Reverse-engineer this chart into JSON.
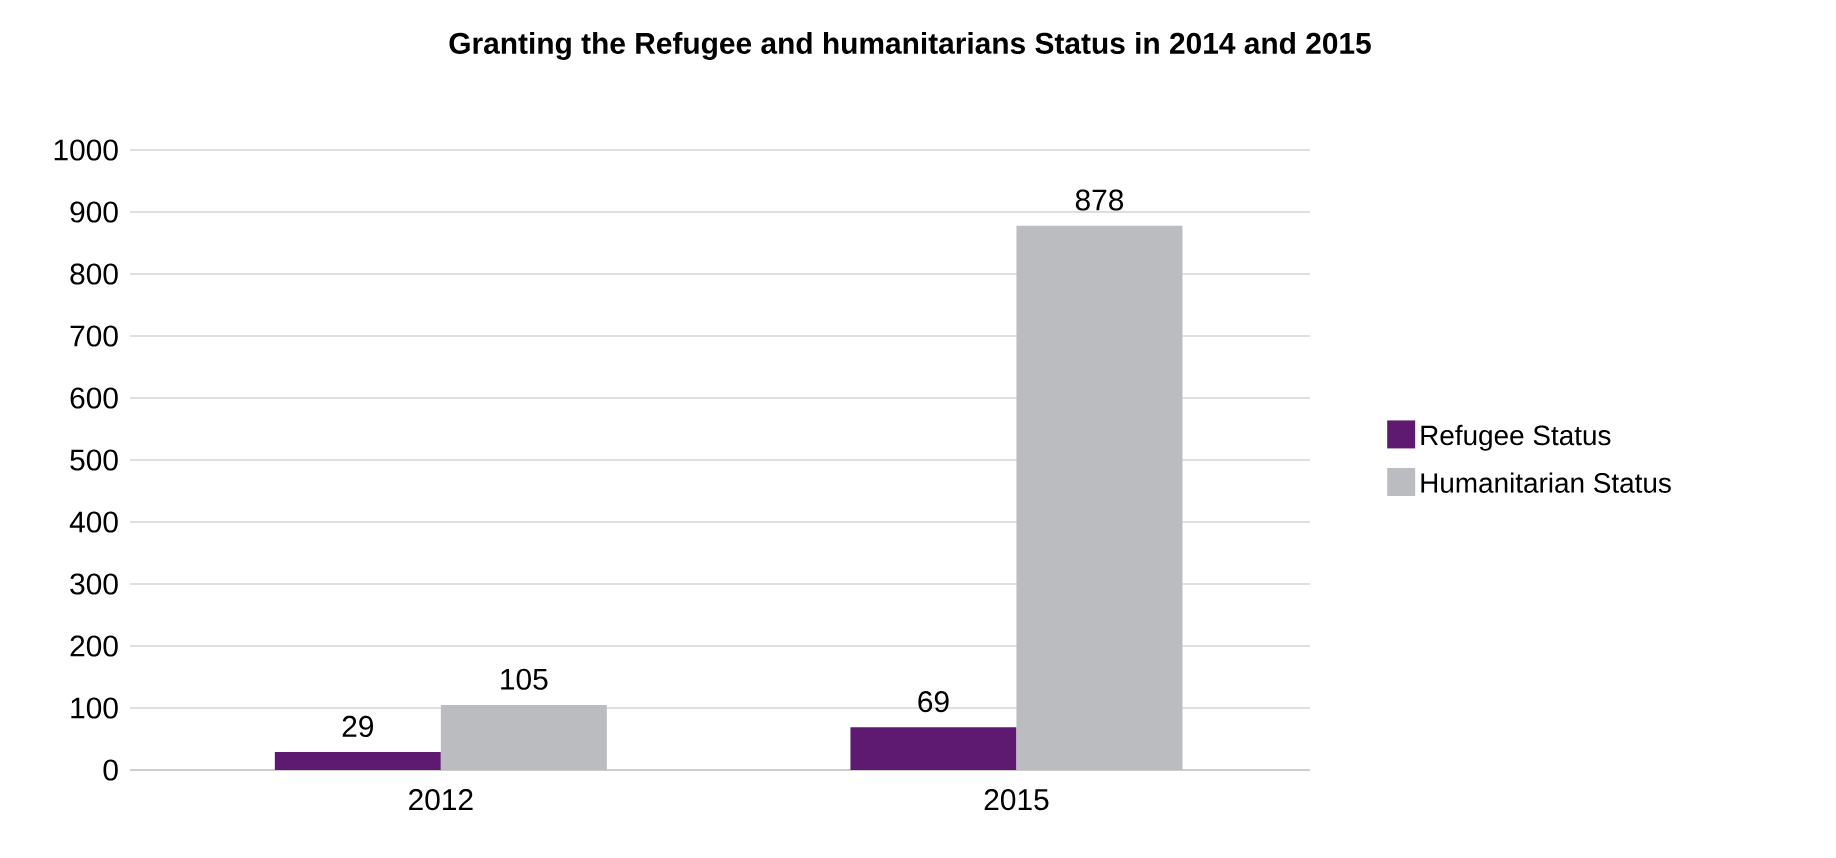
{
  "chart_data": {
    "type": "bar",
    "title": "Granting the Refugee and humanitarians Status in 2014 and 2015",
    "categories": [
      "2012",
      "2015"
    ],
    "series": [
      {
        "name": "Refugee Status",
        "color": "#5e1a70",
        "values": [
          29,
          69
        ]
      },
      {
        "name": "Humanitarian Status",
        "color": "#bbbcc0",
        "values": [
          105,
          878
        ]
      }
    ],
    "ylim": [
      0,
      1000
    ],
    "yticks": [
      0,
      100,
      200,
      300,
      400,
      500,
      600,
      700,
      800,
      900,
      1000
    ],
    "grid": "y",
    "legend": "right",
    "data_labels": true
  }
}
